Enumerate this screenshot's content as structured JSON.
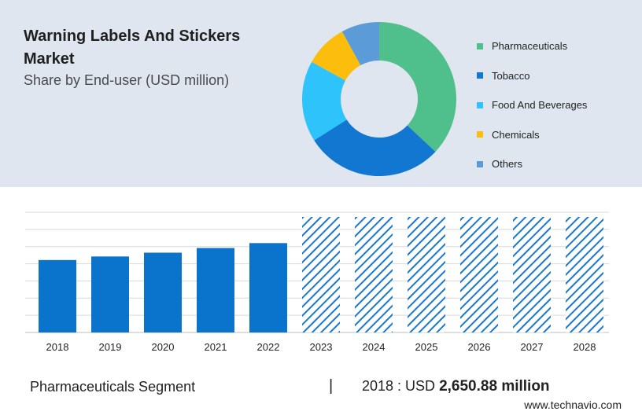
{
  "header": {
    "title": "Warning Labels And Stickers Market",
    "subtitle": "Share by End-user (USD million)"
  },
  "colors": {
    "pharma": "#4fbf8c",
    "tobacco": "#1177d1",
    "food": "#2ec4fb",
    "chemicals": "#fcbd0d",
    "others": "#5b9bd8",
    "bar": "#0a73cc",
    "hatch": "#1a78cf"
  },
  "chart_data": [
    {
      "type": "pie",
      "title": "Share by End-user (USD million)",
      "donut": true,
      "labels": [
        "Pharmaceuticals",
        "Tobacco",
        "Food And Beverages",
        "Chemicals",
        "Others"
      ],
      "values": [
        37,
        29,
        17,
        9,
        8
      ]
    },
    {
      "type": "bar",
      "categories": [
        "2018",
        "2019",
        "2020",
        "2021",
        "2022",
        "2023",
        "2024",
        "2025",
        "2026",
        "2027",
        "2028"
      ],
      "values": [
        2650.88,
        2780,
        2920,
        3090,
        3270,
        null,
        null,
        null,
        null,
        null,
        null
      ],
      "forecast_categories": [
        "2023",
        "2024",
        "2025",
        "2026",
        "2027",
        "2028"
      ],
      "ylim": [
        0,
        4400
      ],
      "grid": true
    }
  ],
  "footer": {
    "segment": "Pharmaceuticals Segment",
    "separator": "|",
    "year_label": "2018 : USD",
    "value": "2,650.88 million",
    "url": "www.technavio.com"
  }
}
